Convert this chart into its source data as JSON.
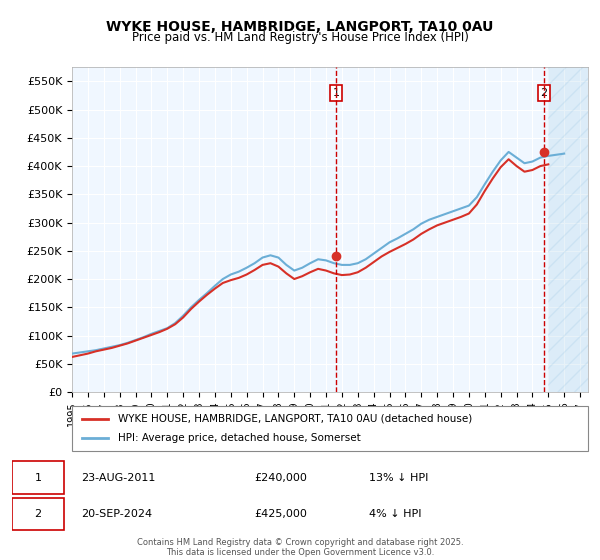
{
  "title_line1": "WYKE HOUSE, HAMBRIDGE, LANGPORT, TA10 0AU",
  "title_line2": "Price paid vs. HM Land Registry's House Price Index (HPI)",
  "ylabel_ticks": [
    "£0",
    "£50K",
    "£100K",
    "£150K",
    "£200K",
    "£250K",
    "£300K",
    "£350K",
    "£400K",
    "£450K",
    "£500K",
    "£550K"
  ],
  "ytick_values": [
    0,
    50000,
    100000,
    150000,
    200000,
    250000,
    300000,
    350000,
    400000,
    450000,
    500000,
    550000
  ],
  "ylim": [
    0,
    575000
  ],
  "xlim_start": 1995.0,
  "xlim_end": 2027.5,
  "xtick_years": [
    1995,
    1996,
    1997,
    1998,
    1999,
    2000,
    2001,
    2002,
    2003,
    2004,
    2005,
    2006,
    2007,
    2008,
    2009,
    2010,
    2011,
    2012,
    2013,
    2014,
    2015,
    2016,
    2017,
    2018,
    2019,
    2020,
    2021,
    2022,
    2023,
    2024,
    2025,
    2026,
    2027
  ],
  "hpi_color": "#6baed6",
  "price_color": "#d73027",
  "sale1_x": 2011.64,
  "sale1_y": 240000,
  "sale2_x": 2024.72,
  "sale2_y": 425000,
  "vline_color": "#cc0000",
  "hatch_color": "#aec6e8",
  "legend_label1": "WYKE HOUSE, HAMBRIDGE, LANGPORT, TA10 0AU (detached house)",
  "legend_label2": "HPI: Average price, detached house, Somerset",
  "annotation1_label": "1",
  "annotation1_date": "23-AUG-2011",
  "annotation1_price": "£240,000",
  "annotation1_hpi": "13% ↓ HPI",
  "annotation2_label": "2",
  "annotation2_date": "20-SEP-2024",
  "annotation2_price": "£425,000",
  "annotation2_hpi": "4% ↓ HPI",
  "footer": "Contains HM Land Registry data © Crown copyright and database right 2025.\nThis data is licensed under the Open Government Licence v3.0.",
  "bg_color": "#ddeeff",
  "plot_bg": "#f0f7ff",
  "hpi_data": [
    [
      1995.0,
      68000
    ],
    [
      1995.5,
      70000
    ],
    [
      1996.0,
      72000
    ],
    [
      1996.5,
      74000
    ],
    [
      1997.0,
      77000
    ],
    [
      1997.5,
      80000
    ],
    [
      1998.0,
      83000
    ],
    [
      1998.5,
      87000
    ],
    [
      1999.0,
      92000
    ],
    [
      1999.5,
      97000
    ],
    [
      2000.0,
      103000
    ],
    [
      2000.5,
      108000
    ],
    [
      2001.0,
      113000
    ],
    [
      2001.5,
      122000
    ],
    [
      2002.0,
      135000
    ],
    [
      2002.5,
      150000
    ],
    [
      2003.0,
      163000
    ],
    [
      2003.5,
      175000
    ],
    [
      2004.0,
      188000
    ],
    [
      2004.5,
      200000
    ],
    [
      2005.0,
      208000
    ],
    [
      2005.5,
      213000
    ],
    [
      2006.0,
      220000
    ],
    [
      2006.5,
      228000
    ],
    [
      2007.0,
      238000
    ],
    [
      2007.5,
      242000
    ],
    [
      2008.0,
      238000
    ],
    [
      2008.5,
      225000
    ],
    [
      2009.0,
      215000
    ],
    [
      2009.5,
      220000
    ],
    [
      2010.0,
      228000
    ],
    [
      2010.5,
      235000
    ],
    [
      2011.0,
      233000
    ],
    [
      2011.5,
      228000
    ],
    [
      2012.0,
      225000
    ],
    [
      2012.5,
      225000
    ],
    [
      2013.0,
      228000
    ],
    [
      2013.5,
      235000
    ],
    [
      2014.0,
      245000
    ],
    [
      2014.5,
      255000
    ],
    [
      2015.0,
      265000
    ],
    [
      2015.5,
      272000
    ],
    [
      2016.0,
      280000
    ],
    [
      2016.5,
      288000
    ],
    [
      2017.0,
      298000
    ],
    [
      2017.5,
      305000
    ],
    [
      2018.0,
      310000
    ],
    [
      2018.5,
      315000
    ],
    [
      2019.0,
      320000
    ],
    [
      2019.5,
      325000
    ],
    [
      2020.0,
      330000
    ],
    [
      2020.5,
      345000
    ],
    [
      2021.0,
      368000
    ],
    [
      2021.5,
      390000
    ],
    [
      2022.0,
      410000
    ],
    [
      2022.5,
      425000
    ],
    [
      2023.0,
      415000
    ],
    [
      2023.5,
      405000
    ],
    [
      2024.0,
      408000
    ],
    [
      2024.5,
      415000
    ],
    [
      2025.0,
      418000
    ],
    [
      2025.5,
      420000
    ],
    [
      2026.0,
      422000
    ]
  ],
  "price_data": [
    [
      1995.0,
      62000
    ],
    [
      1995.5,
      65000
    ],
    [
      1996.0,
      68000
    ],
    [
      1996.5,
      72000
    ],
    [
      1997.0,
      75000
    ],
    [
      1997.5,
      78000
    ],
    [
      1998.0,
      82000
    ],
    [
      1998.5,
      86000
    ],
    [
      1999.0,
      91000
    ],
    [
      1999.5,
      96000
    ],
    [
      2000.0,
      101000
    ],
    [
      2000.5,
      106000
    ],
    [
      2001.0,
      112000
    ],
    [
      2001.5,
      120000
    ],
    [
      2002.0,
      132000
    ],
    [
      2002.5,
      147000
    ],
    [
      2003.0,
      160000
    ],
    [
      2003.5,
      172000
    ],
    [
      2004.0,
      183000
    ],
    [
      2004.5,
      193000
    ],
    [
      2005.0,
      198000
    ],
    [
      2005.5,
      202000
    ],
    [
      2006.0,
      208000
    ],
    [
      2006.5,
      216000
    ],
    [
      2007.0,
      225000
    ],
    [
      2007.5,
      228000
    ],
    [
      2008.0,
      222000
    ],
    [
      2008.5,
      210000
    ],
    [
      2009.0,
      200000
    ],
    [
      2009.5,
      205000
    ],
    [
      2010.0,
      212000
    ],
    [
      2010.5,
      218000
    ],
    [
      2011.0,
      215000
    ],
    [
      2011.5,
      210000
    ],
    [
      2012.0,
      207000
    ],
    [
      2012.5,
      208000
    ],
    [
      2013.0,
      212000
    ],
    [
      2013.5,
      220000
    ],
    [
      2014.0,
      230000
    ],
    [
      2014.5,
      240000
    ],
    [
      2015.0,
      248000
    ],
    [
      2015.5,
      255000
    ],
    [
      2016.0,
      262000
    ],
    [
      2016.5,
      270000
    ],
    [
      2017.0,
      280000
    ],
    [
      2017.5,
      288000
    ],
    [
      2018.0,
      295000
    ],
    [
      2018.5,
      300000
    ],
    [
      2019.0,
      305000
    ],
    [
      2019.5,
      310000
    ],
    [
      2020.0,
      316000
    ],
    [
      2020.5,
      332000
    ],
    [
      2021.0,
      356000
    ],
    [
      2021.5,
      378000
    ],
    [
      2022.0,
      398000
    ],
    [
      2022.5,
      412000
    ],
    [
      2023.0,
      400000
    ],
    [
      2023.5,
      390000
    ],
    [
      2024.0,
      393000
    ],
    [
      2024.5,
      400000
    ],
    [
      2025.0,
      403000
    ]
  ]
}
